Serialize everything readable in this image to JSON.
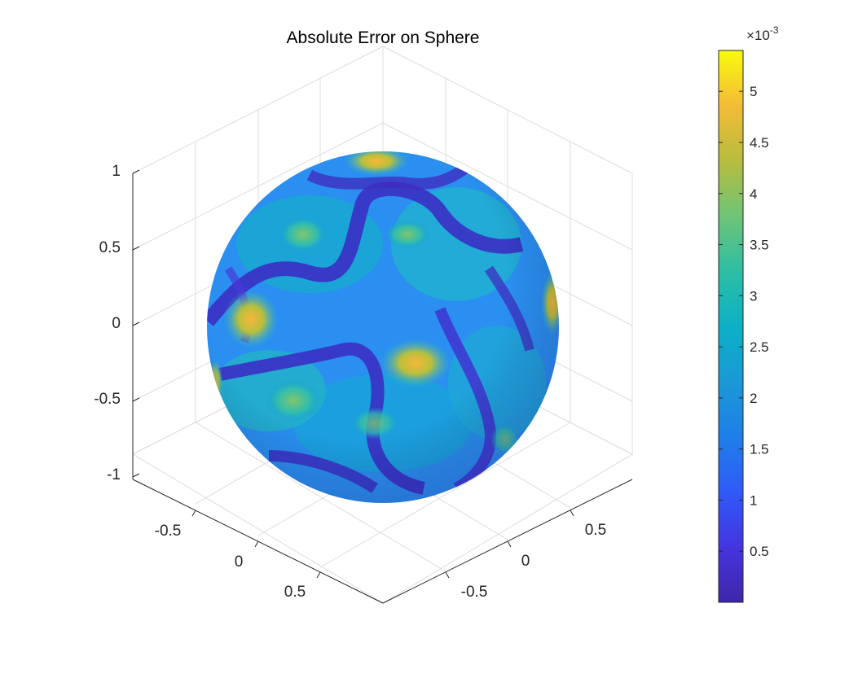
{
  "chart_data": {
    "type": "surface",
    "title": "Absolute Error on Sphere",
    "xlabel": "",
    "ylabel": "",
    "zlabel": "",
    "surface": "unit sphere",
    "x_ticks": [
      "-0.5",
      "0",
      "0.5"
    ],
    "y_ticks": [
      "-0.5",
      "0",
      "0.5"
    ],
    "z_ticks": [
      "-1",
      "-0.5",
      "0",
      "0.5",
      "1"
    ],
    "x_range": [
      -1,
      1
    ],
    "y_range": [
      -1,
      1
    ],
    "z_range": [
      -1,
      1
    ],
    "grid": true,
    "view": "3-D isometric",
    "colormap": "parula",
    "colorbar": {
      "exponent_label": "×10",
      "exponent_power": "-3",
      "range": [
        0.0,
        5.4
      ],
      "ticks": [
        "0.5",
        "1",
        "1.5",
        "2",
        "2.5",
        "3",
        "3.5",
        "4",
        "4.5",
        "5"
      ],
      "location": "right"
    },
    "value_units": "×10^-3 (absolute error)",
    "value_range": [
      0.0,
      5.4
    ],
    "visible_hotspots": [
      {
        "region": "top (north pole)",
        "approx_value": 4.5
      },
      {
        "region": "left-center",
        "approx_value": 4.5
      },
      {
        "region": "center-right",
        "approx_value": 4.5
      },
      {
        "region": "far right edge",
        "approx_value": 4.8
      },
      {
        "region": "lower-left",
        "approx_value": 3.2
      }
    ],
    "valley_value": 0.1
  },
  "colors": {
    "parula_low": "#3e26a8",
    "parula_mid": "#1ab6bf",
    "parula_high": "#f9fb0e",
    "grid": "#dcdcdc",
    "axis": "#262626"
  }
}
